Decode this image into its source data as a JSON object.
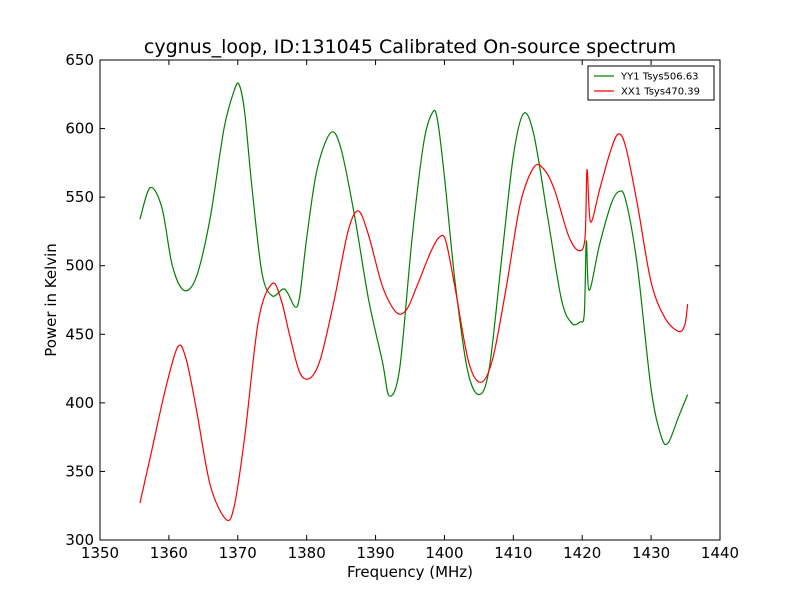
{
  "chart_data": {
    "type": "line",
    "title": "cygnus_loop, ID:131045 Calibrated On-source spectrum",
    "xlabel": "Frequency (MHz)",
    "ylabel": "Power in Kelvin",
    "xlim": [
      1350,
      1440
    ],
    "ylim": [
      300,
      650
    ],
    "xticks": [
      1350,
      1360,
      1370,
      1380,
      1390,
      1400,
      1410,
      1420,
      1430,
      1440
    ],
    "yticks": [
      300,
      350,
      400,
      450,
      500,
      550,
      600,
      650
    ],
    "grid": false,
    "legend_position": "top-right",
    "series": [
      {
        "name": "YY1 Tsys506.63",
        "color": "#008000",
        "x": [
          1355.8,
          1357.3,
          1359,
          1360.5,
          1362.2,
          1364,
          1366,
          1368,
          1369.5,
          1370.2,
          1371,
          1372,
          1373.5,
          1375,
          1376.8,
          1378.3,
          1379,
          1380,
          1381.5,
          1383.5,
          1385,
          1387,
          1389,
          1391,
          1392,
          1393.5,
          1395.3,
          1397,
          1398.3,
          1399,
          1400,
          1401.5,
          1403.3,
          1405,
          1406.5,
          1408.3,
          1410,
          1411.5,
          1413,
          1415,
          1417,
          1418.5,
          1419.7,
          1420.3,
          1420.6,
          1421,
          1422.5,
          1424.2,
          1425.3,
          1426.3,
          1428,
          1430,
          1431.5,
          1432.5,
          1434,
          1435.3
        ],
        "y": [
          534,
          557,
          542,
          500,
          482,
          492,
          535,
          600,
          628,
          632,
          612,
          560,
          495,
          478,
          483,
          470,
          478,
          520,
          570,
          597,
          585,
          535,
          475,
          430,
          405,
          425,
          520,
          590,
          612,
          606,
          565,
          490,
          425,
          406,
          425,
          505,
          580,
          611,
          595,
          535,
          475,
          458,
          459,
          465,
          518,
          482,
          515,
          545,
          554,
          548,
          500,
          410,
          375,
          371,
          390,
          406
        ]
      },
      {
        "name": "XX1 Tsys470.39",
        "color": "#ff0000",
        "x": [
          1355.8,
          1357.5,
          1359.5,
          1361.3,
          1362.5,
          1364,
          1366,
          1368.3,
          1369.5,
          1371,
          1373,
          1375,
          1376.3,
          1377.5,
          1379,
          1380.5,
          1382,
          1384,
          1386,
          1387.5,
          1389,
          1391,
          1393,
          1394.5,
          1396,
          1398,
          1399.3,
          1400.2,
          1401.5,
          1403.5,
          1405.3,
          1407,
          1409,
          1411,
          1413,
          1414.5,
          1416,
          1418,
          1419.5,
          1420.4,
          1420.7,
          1421.2,
          1422.5,
          1424,
          1425.2,
          1426.3,
          1428,
          1430,
          1432,
          1434,
          1434.9,
          1435.3
        ],
        "y": [
          327,
          365,
          410,
          441,
          432,
          395,
          340,
          315,
          325,
          375,
          460,
          487,
          475,
          450,
          422,
          418,
          432,
          475,
          525,
          540,
          522,
          485,
          466,
          468,
          485,
          510,
          521,
          518,
          485,
          430,
          415,
          432,
          485,
          545,
          572,
          570,
          555,
          522,
          511,
          520,
          570,
          532,
          555,
          582,
          596,
          587,
          545,
          488,
          462,
          452,
          457,
          472
        ]
      }
    ]
  }
}
